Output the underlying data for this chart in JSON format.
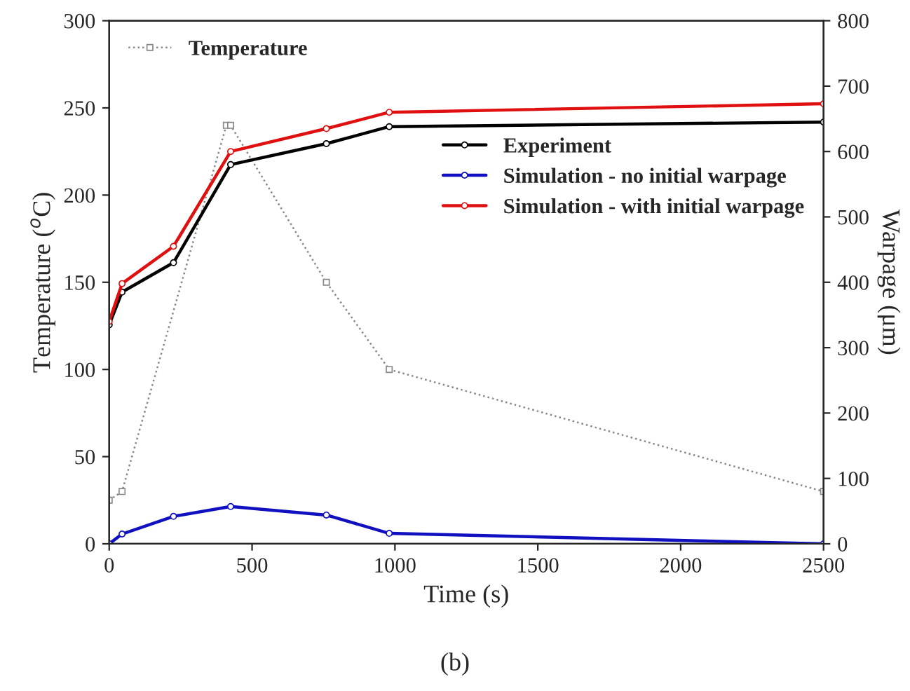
{
  "chart_data": {
    "type": "line",
    "xlabel": "Time (s)",
    "ylabel": "Temperature ($^{o}$C)",
    "y2label": "Warpage (μm)",
    "xlim": [
      0,
      2500
    ],
    "xticks": [
      0,
      500,
      1000,
      1500,
      2000,
      2500
    ],
    "ylim": [
      0,
      300
    ],
    "yticks": [
      0,
      50,
      100,
      150,
      200,
      250,
      300
    ],
    "y2lim": [
      0,
      800
    ],
    "y2ticks": [
      0,
      100,
      200,
      300,
      400,
      500,
      600,
      700,
      800
    ],
    "legend": "right",
    "grid": false,
    "series": [
      {
        "name": "Temperature",
        "color": "#888888",
        "axis": "y",
        "marker": "square",
        "line_style": "dotted",
        "x": [
          0,
          45,
          410,
          425,
          760,
          980,
          2500
        ],
        "values": [
          25,
          30,
          240,
          240,
          150,
          100,
          30
        ]
      },
      {
        "name": "Experiment",
        "color": "#000000",
        "axis": "y2",
        "marker": "circle",
        "line_style": "solid",
        "x": [
          0,
          45,
          225,
          425,
          760,
          980,
          2500
        ],
        "values": [
          335,
          385,
          430,
          580,
          612,
          638,
          645
        ]
      },
      {
        "name": "Simulation - no initial warpage",
        "color": "#1010c0",
        "axis": "y2",
        "marker": "circle",
        "line_style": "solid",
        "x": [
          0,
          45,
          225,
          425,
          760,
          980,
          2500
        ],
        "values": [
          0,
          15,
          42,
          57,
          44,
          16,
          0
        ]
      },
      {
        "name": "Simulation - with initial warpage",
        "color": "#e01010",
        "axis": "y2",
        "marker": "circle",
        "line_style": "solid",
        "x": [
          0,
          45,
          225,
          425,
          760,
          980,
          2500
        ],
        "values": [
          340,
          398,
          455,
          600,
          635,
          660,
          673
        ]
      }
    ],
    "annotations": [
      "(b)"
    ]
  }
}
